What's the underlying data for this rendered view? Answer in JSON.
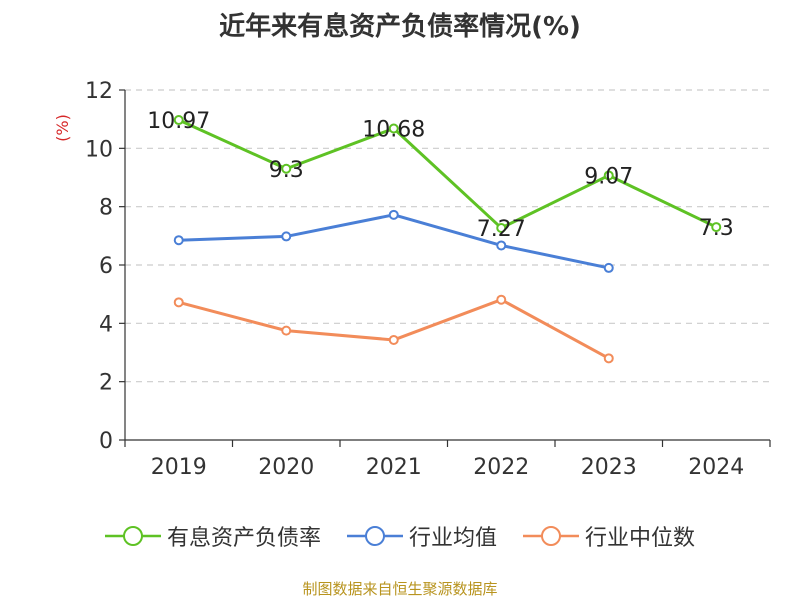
{
  "title": "近年来有息资产负债率情况(%)",
  "footer": "制图数据来自恒生聚源数据库",
  "colors": {
    "series_1": "#5ec224",
    "series_2": "#4a7fd6",
    "series_3": "#f28c5a",
    "ylabel": "#d62728",
    "axis": "#333333",
    "grid": "#cccccc",
    "footer": "#b8941f"
  },
  "chart_data": {
    "type": "line",
    "title": "近年来有息资产负债率情况(%)",
    "xlabel": "",
    "ylabel": "(%)",
    "ylim": [
      0,
      12
    ],
    "yticks": [
      0,
      2,
      4,
      6,
      8,
      10,
      12
    ],
    "categories": [
      "2019",
      "2020",
      "2021",
      "2022",
      "2023",
      "2024"
    ],
    "grid": true,
    "legend_position": "bottom",
    "series": [
      {
        "name": "有息资产负债率",
        "values": [
          10.97,
          9.3,
          10.68,
          7.27,
          9.07,
          7.3
        ],
        "labels": [
          "10.97",
          "9.3",
          "10.68",
          "7.27",
          "9.07",
          "7.3"
        ]
      },
      {
        "name": "行业均值",
        "values": [
          6.85,
          6.98,
          7.72,
          6.67,
          5.9,
          null
        ]
      },
      {
        "name": "行业中位数",
        "values": [
          4.72,
          3.75,
          3.43,
          4.81,
          2.8,
          null
        ]
      }
    ]
  }
}
